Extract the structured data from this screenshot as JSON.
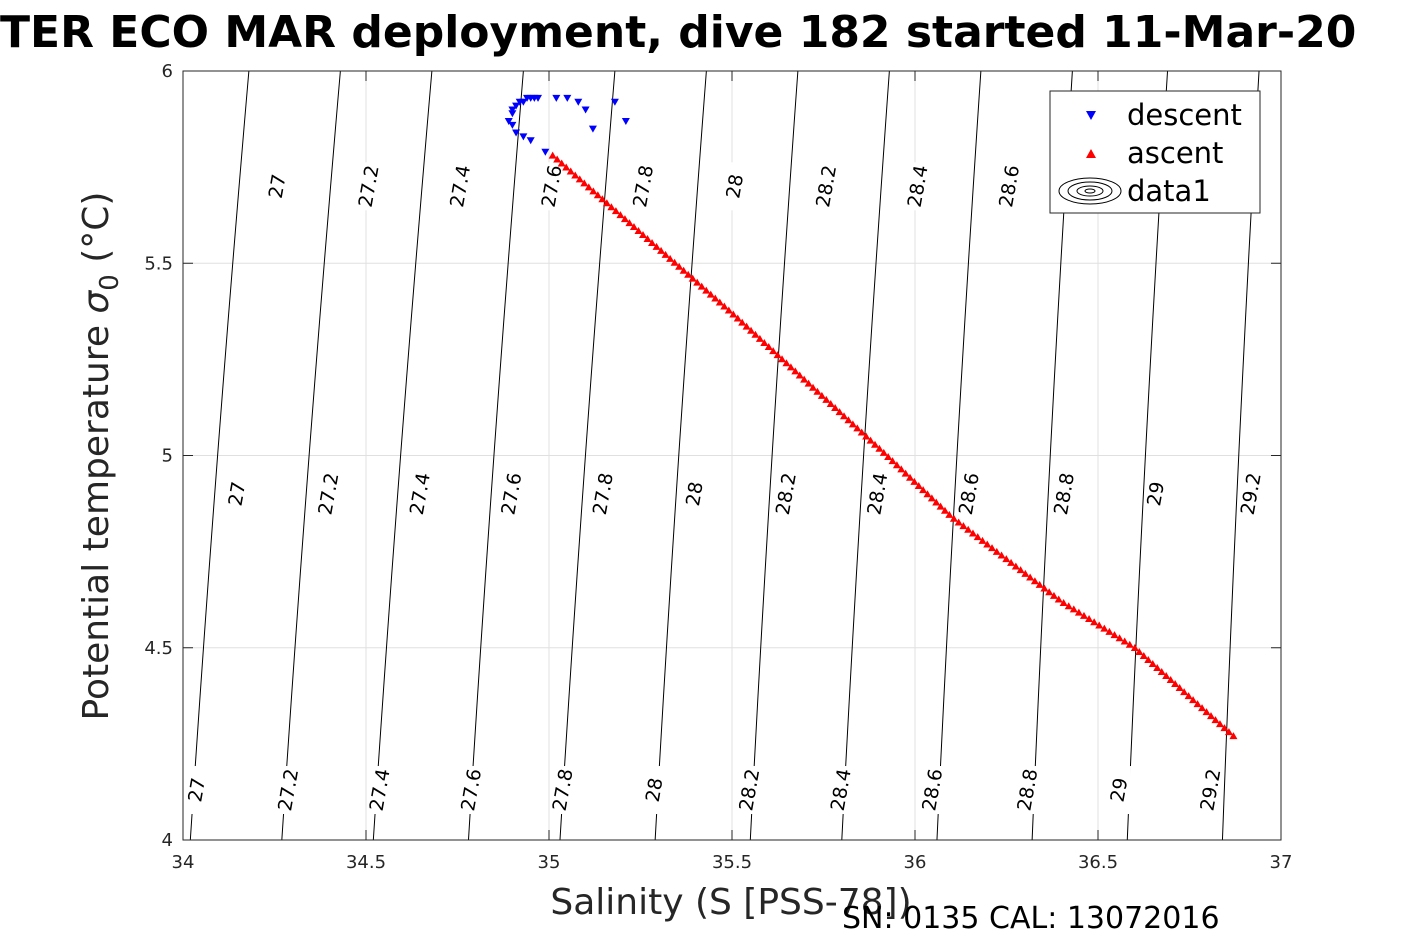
{
  "figure": {
    "title": "TER ECO MAR deployment, dive 182 started 11-Mar-20",
    "xlabel": "Salinity (S [PSS-78])",
    "ylabel_main": "Potential temperature ",
    "ylabel_sigma": "σ",
    "ylabel_sub": "0",
    "ylabel_unit": " (°C)",
    "footer": "SN: 0135  CAL: 13072016"
  },
  "colors": {
    "descent": "#0000ff",
    "ascent": "#ff0000",
    "contour": "#000000",
    "grid": "#e0e0e0"
  },
  "chart_data": {
    "type": "scatter",
    "xlim": [
      34,
      37
    ],
    "ylim": [
      4,
      6
    ],
    "xticks": [
      "34",
      "34.5",
      "35",
      "35.5",
      "36",
      "36.5",
      "37"
    ],
    "yticks": [
      "4",
      "4.5",
      "5",
      "5.5",
      "6"
    ],
    "grid": true,
    "legend_position": "top-right",
    "legend": [
      "descent",
      "ascent",
      "data1"
    ],
    "series": [
      {
        "name": "descent",
        "marker": "triangle-down",
        "x": [
          35.05,
          35.08,
          35.1,
          35.12,
          35.18,
          35.21,
          35.02,
          34.97,
          34.96,
          34.95,
          34.94,
          34.93,
          34.92,
          34.91,
          34.9,
          34.9,
          34.89,
          34.9,
          34.91,
          34.93,
          34.95,
          34.99
        ],
        "y": [
          5.93,
          5.92,
          5.9,
          5.85,
          5.92,
          5.87,
          5.93,
          5.93,
          5.93,
          5.93,
          5.93,
          5.92,
          5.92,
          5.91,
          5.9,
          5.89,
          5.87,
          5.86,
          5.84,
          5.83,
          5.82,
          5.79
        ]
      },
      {
        "name": "ascent",
        "marker": "triangle-up",
        "x": [
          35.01,
          35.5,
          35.9,
          36.1,
          36.4,
          36.6,
          36.87
        ],
        "y": [
          5.78,
          5.37,
          5.02,
          4.84,
          4.62,
          4.5,
          4.27
        ]
      }
    ],
    "contours": {
      "name": "data1",
      "lines": [
        {
          "level": "27",
          "x0": 34.02,
          "x1": 34.18
        },
        {
          "level": "27.2",
          "x0": 34.27,
          "x1": 34.43
        },
        {
          "level": "27.4",
          "x0": 34.52,
          "x1": 34.68
        },
        {
          "level": "27.6",
          "x0": 34.78,
          "x1": 34.93
        },
        {
          "level": "27.8",
          "x0": 35.03,
          "x1": 35.18
        },
        {
          "level": "28",
          "x0": 35.29,
          "x1": 35.43
        },
        {
          "level": "28.2",
          "x0": 35.55,
          "x1": 35.68
        },
        {
          "level": "28.4",
          "x0": 35.8,
          "x1": 35.93
        },
        {
          "level": "28.6",
          "x0": 36.06,
          "x1": 36.18
        },
        {
          "level": "28.8",
          "x0": 36.32,
          "x1": 36.43
        },
        {
          "level": "29",
          "x0": 36.58,
          "x1": 36.69
        },
        {
          "level": "29.2",
          "x0": 36.84,
          "x1": 36.94
        }
      ],
      "label_rows": [
        {
          "y": 4.13,
          "labels": [
            {
              "text": "27",
              "x": 34.04
            },
            {
              "text": "27.2",
              "x": 34.29
            },
            {
              "text": "27.4",
              "x": 34.54
            },
            {
              "text": "27.6",
              "x": 34.79
            },
            {
              "text": "27.8",
              "x": 35.04
            },
            {
              "text": "28",
              "x": 35.29
            },
            {
              "text": "28.2",
              "x": 35.55
            },
            {
              "text": "28.4",
              "x": 35.8
            },
            {
              "text": "28.6",
              "x": 36.05
            },
            {
              "text": "28.8",
              "x": 36.31
            },
            {
              "text": "29",
              "x": 36.56
            },
            {
              "text": "29.2",
              "x": 36.81
            }
          ]
        },
        {
          "y": 4.9,
          "labels": [
            {
              "text": "27",
              "x": 34.15
            },
            {
              "text": "27.2",
              "x": 34.4
            },
            {
              "text": "27.4",
              "x": 34.65
            },
            {
              "text": "27.6",
              "x": 34.9
            },
            {
              "text": "27.8",
              "x": 35.15
            },
            {
              "text": "28",
              "x": 35.4
            },
            {
              "text": "28.2",
              "x": 35.65
            },
            {
              "text": "28.4",
              "x": 35.9
            },
            {
              "text": "28.6",
              "x": 36.15
            },
            {
              "text": "28.8",
              "x": 36.41
            },
            {
              "text": "29",
              "x": 36.66
            },
            {
              "text": "29.2",
              "x": 36.92
            }
          ]
        },
        {
          "y": 5.7,
          "labels": [
            {
              "text": "27",
              "x": 34.26
            },
            {
              "text": "27.2",
              "x": 34.51
            },
            {
              "text": "27.4",
              "x": 34.76
            },
            {
              "text": "27.6",
              "x": 35.01
            },
            {
              "text": "27.8",
              "x": 35.26
            },
            {
              "text": "28",
              "x": 35.51
            },
            {
              "text": "28.2",
              "x": 35.76
            },
            {
              "text": "28.4",
              "x": 36.01
            },
            {
              "text": "28.6",
              "x": 36.26
            }
          ]
        }
      ]
    }
  }
}
